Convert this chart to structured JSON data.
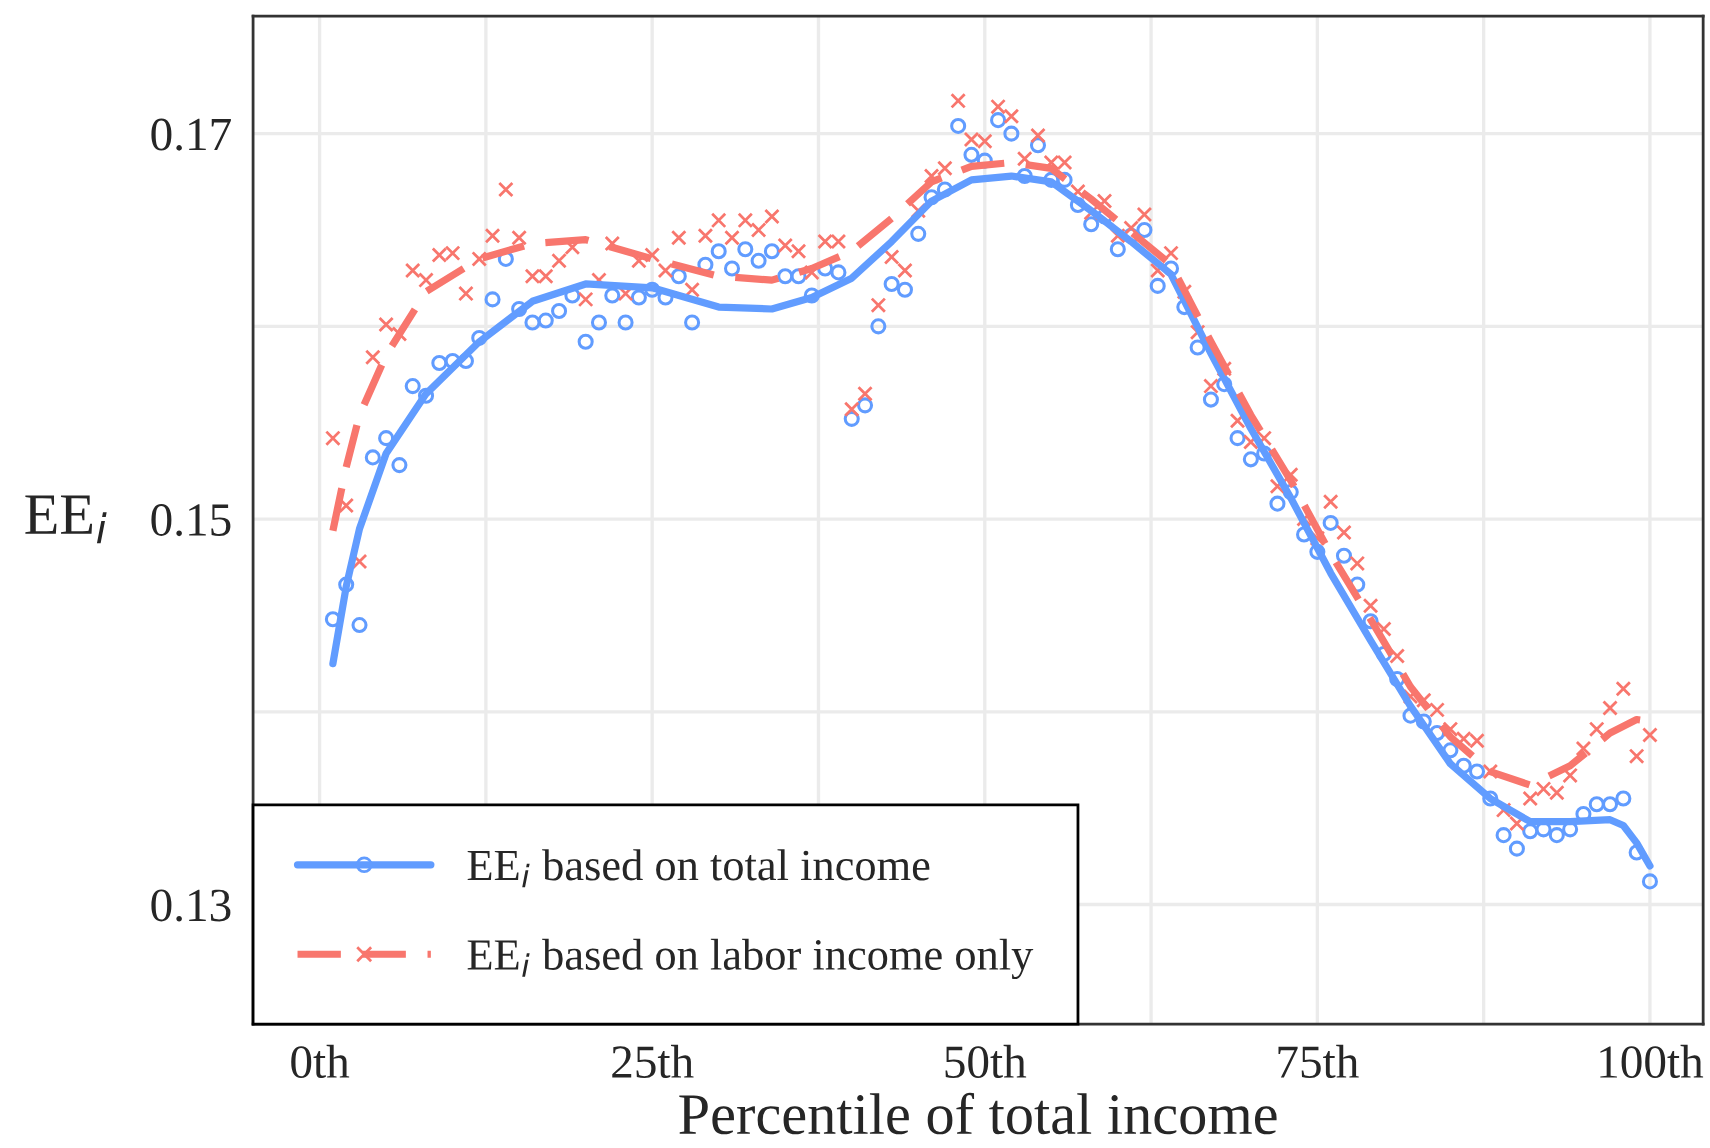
{
  "chart_data": {
    "type": "scatter",
    "xlabel": "Percentile of total income",
    "ylabel": "EE$_{i}$",
    "xlim": [
      -5,
      104
    ],
    "ylim": [
      0.1238,
      0.1761
    ],
    "xticks": [
      {
        "value": 0,
        "label": "0th"
      },
      {
        "value": 12.5,
        "label": null
      },
      {
        "value": 25,
        "label": "25th"
      },
      {
        "value": 37.5,
        "label": null
      },
      {
        "value": 50,
        "label": "50th"
      },
      {
        "value": 62.5,
        "label": null
      },
      {
        "value": 75,
        "label": "75th"
      },
      {
        "value": 87.5,
        "label": null
      },
      {
        "value": 100,
        "label": "100th"
      }
    ],
    "yticks": [
      0.13,
      {
        "value": 0.14,
        "label": null
      },
      0.15,
      {
        "value": 0.16,
        "label": null
      },
      0.17
    ],
    "grid": true,
    "legend": "bottom left",
    "x": [
      1,
      2,
      3,
      4,
      5,
      6,
      7,
      8,
      9,
      10,
      11,
      12,
      13,
      14,
      15,
      16,
      17,
      18,
      19,
      20,
      21,
      22,
      23,
      24,
      25,
      26,
      27,
      28,
      29,
      30,
      31,
      32,
      33,
      34,
      35,
      36,
      37,
      38,
      39,
      40,
      41,
      42,
      43,
      44,
      45,
      46,
      47,
      48,
      49,
      50,
      51,
      52,
      53,
      54,
      55,
      56,
      57,
      58,
      59,
      60,
      61,
      62,
      63,
      64,
      65,
      66,
      67,
      68,
      69,
      70,
      71,
      72,
      73,
      74,
      75,
      76,
      77,
      78,
      79,
      80,
      81,
      82,
      83,
      84,
      85,
      86,
      87,
      88,
      89,
      90,
      91,
      92,
      93,
      94,
      95,
      96,
      97,
      98,
      99,
      100
    ],
    "series": [
      {
        "marker": "circle",
        "color": "#619cff",
        "values": [
          0.1448,
          0.1466,
          0.1445,
          0.1532,
          0.1542,
          0.1528,
          0.1569,
          0.1564,
          0.1581,
          0.1582,
          0.1582,
          0.1594,
          0.1614,
          0.1635,
          0.1609,
          0.1602,
          0.1603,
          0.1608,
          0.1616,
          0.1592,
          0.1602,
          0.1616,
          0.1602,
          0.1615,
          0.1619,
          0.1615,
          0.1626,
          0.1602,
          0.1632,
          0.1639,
          0.163,
          0.164,
          0.1634,
          0.1639,
          0.1626,
          0.1626,
          0.1616,
          0.163,
          0.1628,
          0.1552,
          0.1559,
          0.16,
          0.1622,
          0.1619,
          0.1648,
          0.1667,
          0.1671,
          0.1704,
          0.1689,
          0.1686,
          0.1707,
          0.17,
          0.1678,
          0.1694,
          0.1676,
          0.1676,
          0.1663,
          0.1653,
          0.1657,
          0.164,
          0.1647,
          0.165,
          0.1621,
          0.163,
          0.161,
          0.1589,
          0.1562,
          0.157,
          0.1542,
          0.1531,
          0.1534,
          0.1508,
          0.1514,
          0.1492,
          0.1483,
          0.1498,
          0.1481,
          0.1466,
          0.1447,
          0.143,
          0.1417,
          0.1398,
          0.1395,
          0.1389,
          0.138,
          0.1372,
          0.1369,
          0.1355,
          0.1336,
          0.1329,
          0.1338,
          0.1339,
          0.1336,
          0.1339,
          0.1347,
          0.1352,
          0.1352,
          0.1355,
          0.1327,
          0.1312
        ]
      },
      {
        "marker": "cross",
        "color": "#f8766d",
        "values": [
          0.1542,
          0.1507,
          0.1478,
          0.1584,
          0.1601,
          0.1596,
          0.1629,
          0.1624,
          0.1637,
          0.1638,
          0.1617,
          0.1635,
          0.1647,
          0.1671,
          0.1646,
          0.1626,
          0.1626,
          0.1634,
          0.1641,
          0.1614,
          0.1624,
          0.1643,
          0.1617,
          0.1634,
          0.1637,
          0.1629,
          0.1646,
          0.1619,
          0.1647,
          0.1655,
          0.1646,
          0.1655,
          0.165,
          0.1657,
          0.1642,
          0.1639,
          0.1628,
          0.1644,
          0.1644,
          0.1557,
          0.1565,
          0.1611,
          0.1636,
          0.1629,
          0.166,
          0.1678,
          0.1682,
          0.1717,
          0.1697,
          0.1696,
          0.1714,
          0.1709,
          0.1687,
          0.1699,
          0.1685,
          0.1685,
          0.167,
          0.1659,
          0.1665,
          0.1647,
          0.1651,
          0.1658,
          0.1629,
          0.1638,
          0.1618,
          0.1597,
          0.1569,
          0.1578,
          0.1551,
          0.154,
          0.1542,
          0.1517,
          0.1523,
          0.15,
          0.149,
          0.1509,
          0.1493,
          0.1477,
          0.1455,
          0.1443,
          0.1429,
          0.1408,
          0.1406,
          0.1401,
          0.1391,
          0.1386,
          0.1385,
          0.1369,
          0.1349,
          0.1342,
          0.1355,
          0.136,
          0.1358,
          0.1367,
          0.1381,
          0.1391,
          0.1402,
          0.1412,
          0.1377,
          0.1388
        ]
      },
      {
        "type": "line",
        "name": "EE$_{i}$ based on total income",
        "color": "#619cff",
        "line_style": "solid",
        "x": [
          1,
          2,
          3,
          5,
          8,
          12,
          16,
          20,
          25,
          30,
          34,
          37,
          40,
          43,
          46,
          49,
          52,
          55,
          58,
          61,
          64,
          67,
          70,
          73,
          76,
          79,
          82,
          85,
          88,
          91,
          94,
          97,
          98,
          99,
          100
        ],
        "values": [
          0.1425,
          0.1465,
          0.1495,
          0.1534,
          0.1565,
          0.1592,
          0.1613,
          0.1622,
          0.162,
          0.161,
          0.1609,
          0.1615,
          0.1625,
          0.1644,
          0.1665,
          0.1676,
          0.1678,
          0.1675,
          0.166,
          0.1644,
          0.1627,
          0.1586,
          0.1547,
          0.1511,
          0.1472,
          0.1437,
          0.1403,
          0.1373,
          0.1355,
          0.1343,
          0.1343,
          0.1344,
          0.1341,
          0.1332,
          0.132
        ]
      },
      {
        "type": "line",
        "name": "EE$_{i}$ based on labor income only",
        "color": "#f8766d",
        "line_style": "dashed",
        "x": [
          1,
          2,
          3,
          5,
          8,
          12,
          16,
          20,
          25,
          30,
          34,
          37,
          40,
          43,
          46,
          49,
          52,
          55,
          58,
          61,
          64,
          67,
          70,
          73,
          76,
          79,
          82,
          85,
          88,
          91,
          94,
          97,
          99,
          100
        ],
        "values": [
          0.1494,
          0.1527,
          0.1554,
          0.1585,
          0.1618,
          0.1635,
          0.1643,
          0.1645,
          0.1635,
          0.1626,
          0.1624,
          0.163,
          0.1639,
          0.1656,
          0.1675,
          0.1683,
          0.1685,
          0.1682,
          0.1666,
          0.1649,
          0.1632,
          0.1592,
          0.1554,
          0.152,
          0.1482,
          0.1448,
          0.1413,
          0.1387,
          0.1369,
          0.1362,
          0.1372,
          0.1389,
          0.1396,
          0.1395
        ]
      }
    ]
  }
}
